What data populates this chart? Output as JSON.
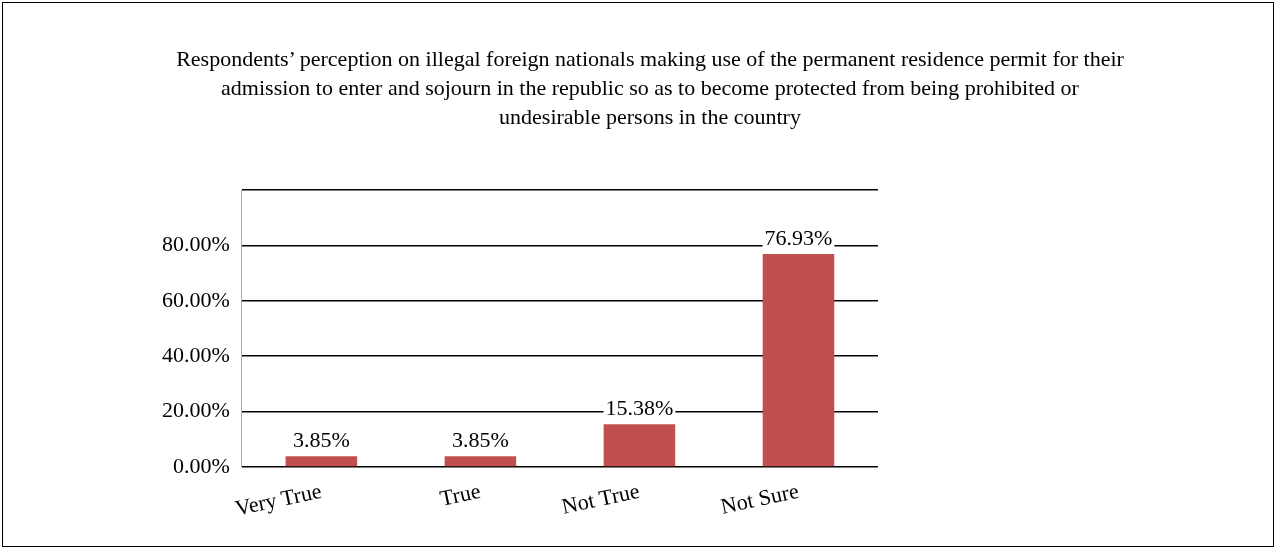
{
  "chart_data": {
    "type": "bar",
    "title": "Respondents’ perception on illegal foreign nationals making use of the permanent residence permit for their admission to enter and sojourn in the republic so as to become protected from being prohibited or undesirable persons in the country",
    "categories": [
      "Very True",
      "True",
      "Not True",
      "Not Sure"
    ],
    "values": [
      3.85,
      3.85,
      15.38,
      76.93
    ],
    "value_labels": [
      "3.85%",
      "3.85%",
      "15.38%",
      "76.93%"
    ],
    "color": "#c0504d",
    "ylim": [
      0,
      100
    ],
    "yticks": [
      {
        "value": 0,
        "label": "0.00%"
      },
      {
        "value": 20,
        "label": "20.00%"
      },
      {
        "value": 40,
        "label": "40.00%"
      },
      {
        "value": 60,
        "label": "60.00%"
      },
      {
        "value": 80,
        "label": "80.00%"
      },
      {
        "value": 100,
        "label": null
      }
    ],
    "grid": true
  }
}
